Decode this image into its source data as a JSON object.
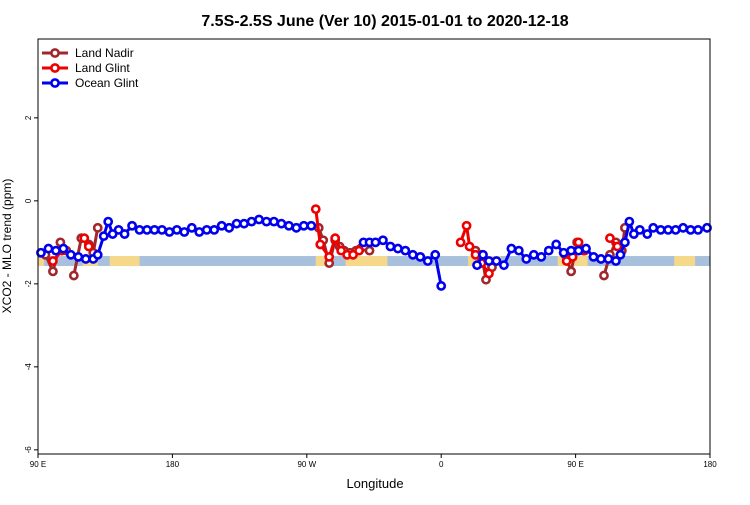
{
  "chart_data": {
    "type": "line",
    "title": "7.5S-2.5S June (Ver 10)   2015-01-01 to 2020-12-18",
    "xlabel": "Longitude",
    "ylabel": "XCO2 - MLO trend (ppm)",
    "xlim": [
      -90,
      360
    ],
    "ylim": [
      -6.1,
      3.9
    ],
    "x_ticks": [
      {
        "value": -90,
        "label": "90 E"
      },
      {
        "value": 0,
        "label": "180"
      },
      {
        "value": 90,
        "label": "90 W"
      },
      {
        "value": 180,
        "label": "0"
      },
      {
        "value": 270,
        "label": "90 E"
      },
      {
        "value": 360,
        "label": "180"
      }
    ],
    "y_ticks": [
      {
        "value": -6,
        "label": "-6"
      },
      {
        "value": -4,
        "label": "-4"
      },
      {
        "value": -2,
        "label": "-2"
      },
      {
        "value": 0,
        "label": "0"
      },
      {
        "value": 2,
        "label": "2"
      }
    ],
    "legend_position": "top-left",
    "grid": false,
    "land_band": {
      "y": -1.45,
      "color": "#a8c0dc",
      "land_color": "#f5d88a"
    },
    "land_segments": [
      [
        -90,
        -86
      ],
      [
        -60,
        -50
      ],
      [
        -42,
        -22
      ],
      [
        96,
        104
      ],
      [
        116,
        144
      ],
      [
        198,
        220
      ],
      [
        258,
        278
      ],
      [
        336,
        350
      ]
    ],
    "series": [
      {
        "name": "Land Nadir",
        "color": "#a0282c",
        "segments": [
          [
            [
              -85,
              -1.3
            ],
            [
              -80,
              -1.7
            ],
            [
              -75,
              -1.0
            ],
            [
              -71,
              -1.2
            ]
          ],
          [
            [
              -66,
              -1.8
            ],
            [
              -61,
              -0.9
            ],
            [
              -56,
              -1.05
            ],
            [
              -53,
              -1.25
            ],
            [
              -50,
              -0.65
            ]
          ],
          [
            [
              98,
              -0.65
            ],
            [
              101,
              -0.95
            ],
            [
              105,
              -1.5
            ],
            [
              109,
              -0.95
            ],
            [
              112,
              -1.1
            ],
            [
              115,
              -1.2
            ],
            [
              119,
              -1.25
            ],
            [
              123,
              -1.2
            ],
            [
              126,
              -1.15
            ],
            [
              129,
              -1.1
            ],
            [
              132,
              -1.2
            ]
          ],
          [
            [
              203,
              -1.2
            ],
            [
              207,
              -1.3
            ],
            [
              210,
              -1.9
            ],
            [
              214,
              -1.6
            ]
          ],
          [
            [
              263,
              -1.3
            ],
            [
              267,
              -1.7
            ],
            [
              271,
              -1.0
            ],
            [
              275,
              -1.2
            ]
          ],
          [
            [
              289,
              -1.8
            ],
            [
              293,
              -1.3
            ],
            [
              297,
              -1.0
            ],
            [
              301,
              -1.2
            ],
            [
              303,
              -0.65
            ]
          ]
        ]
      },
      {
        "name": "Land Glint",
        "color": "#ee0000",
        "segments": [
          [
            [
              -80,
              -1.45
            ],
            [
              -74,
              -1.2
            ]
          ],
          [
            [
              -59,
              -0.9
            ],
            [
              -56,
              -1.1
            ]
          ],
          [
            [
              96,
              -0.2
            ],
            [
              99,
              -1.05
            ],
            [
              105,
              -1.35
            ],
            [
              109,
              -0.9
            ],
            [
              113,
              -1.2
            ],
            [
              117,
              -1.3
            ],
            [
              121,
              -1.3
            ],
            [
              125,
              -1.2
            ]
          ],
          [
            [
              193,
              -1.0
            ],
            [
              197,
              -0.6
            ],
            [
              199,
              -1.1
            ],
            [
              203,
              -1.3
            ],
            [
              207,
              -1.5
            ],
            [
              212,
              -1.75
            ]
          ],
          [
            [
              264,
              -1.45
            ],
            [
              268,
              -1.35
            ],
            [
              272,
              -1.0
            ],
            [
              276,
              -1.2
            ]
          ],
          [
            [
              293,
              -0.9
            ],
            [
              298,
              -1.1
            ]
          ]
        ]
      },
      {
        "name": "Ocean Glint",
        "color": "#0000ee",
        "segments": [
          [
            [
              -88,
              -1.25
            ],
            [
              -83,
              -1.15
            ],
            [
              -78,
              -1.2
            ],
            [
              -73,
              -1.15
            ],
            [
              -68,
              -1.3
            ],
            [
              -63,
              -1.35
            ],
            [
              -58,
              -1.4
            ],
            [
              -53,
              -1.4
            ],
            [
              -50,
              -1.3
            ],
            [
              -46,
              -0.85
            ],
            [
              -43,
              -0.5
            ],
            [
              -40,
              -0.8
            ],
            [
              -36,
              -0.7
            ],
            [
              -32,
              -0.8
            ],
            [
              -27,
              -0.6
            ],
            [
              -22,
              -0.7
            ],
            [
              -17,
              -0.7
            ],
            [
              -12,
              -0.7
            ],
            [
              -7,
              -0.7
            ],
            [
              -2,
              -0.75
            ],
            [
              3,
              -0.7
            ],
            [
              8,
              -0.75
            ],
            [
              13,
              -0.65
            ],
            [
              18,
              -0.75
            ],
            [
              23,
              -0.7
            ],
            [
              28,
              -0.7
            ],
            [
              33,
              -0.6
            ],
            [
              38,
              -0.65
            ],
            [
              43,
              -0.55
            ],
            [
              48,
              -0.55
            ],
            [
              53,
              -0.5
            ],
            [
              58,
              -0.45
            ],
            [
              63,
              -0.5
            ],
            [
              68,
              -0.5
            ],
            [
              73,
              -0.55
            ],
            [
              78,
              -0.6
            ],
            [
              83,
              -0.65
            ],
            [
              88,
              -0.6
            ],
            [
              93,
              -0.6
            ]
          ],
          [
            [
              128,
              -1.0
            ],
            [
              132,
              -1.0
            ],
            [
              136,
              -1.0
            ],
            [
              141,
              -0.95
            ],
            [
              146,
              -1.1
            ],
            [
              151,
              -1.15
            ],
            [
              156,
              -1.2
            ],
            [
              161,
              -1.3
            ],
            [
              166,
              -1.35
            ],
            [
              171,
              -1.45
            ],
            [
              176,
              -1.3
            ],
            [
              180,
              -2.05
            ]
          ],
          [
            [
              204,
              -1.55
            ],
            [
              208,
              -1.3
            ],
            [
              212,
              -1.45
            ],
            [
              217,
              -1.45
            ],
            [
              222,
              -1.55
            ],
            [
              227,
              -1.15
            ],
            [
              232,
              -1.2
            ],
            [
              237,
              -1.4
            ],
            [
              242,
              -1.3
            ],
            [
              247,
              -1.35
            ],
            [
              252,
              -1.2
            ],
            [
              257,
              -1.05
            ],
            [
              262,
              -1.25
            ],
            [
              267,
              -1.2
            ],
            [
              272,
              -1.2
            ],
            [
              277,
              -1.15
            ],
            [
              282,
              -1.35
            ],
            [
              287,
              -1.4
            ],
            [
              292,
              -1.4
            ],
            [
              297,
              -1.45
            ],
            [
              300,
              -1.3
            ],
            [
              303,
              -1.0
            ],
            [
              306,
              -0.5
            ],
            [
              309,
              -0.8
            ],
            [
              313,
              -0.7
            ],
            [
              318,
              -0.8
            ],
            [
              322,
              -0.65
            ],
            [
              327,
              -0.7
            ],
            [
              332,
              -0.7
            ],
            [
              337,
              -0.7
            ],
            [
              342,
              -0.65
            ],
            [
              347,
              -0.7
            ],
            [
              352,
              -0.7
            ],
            [
              358,
              -0.65
            ]
          ]
        ]
      }
    ]
  }
}
